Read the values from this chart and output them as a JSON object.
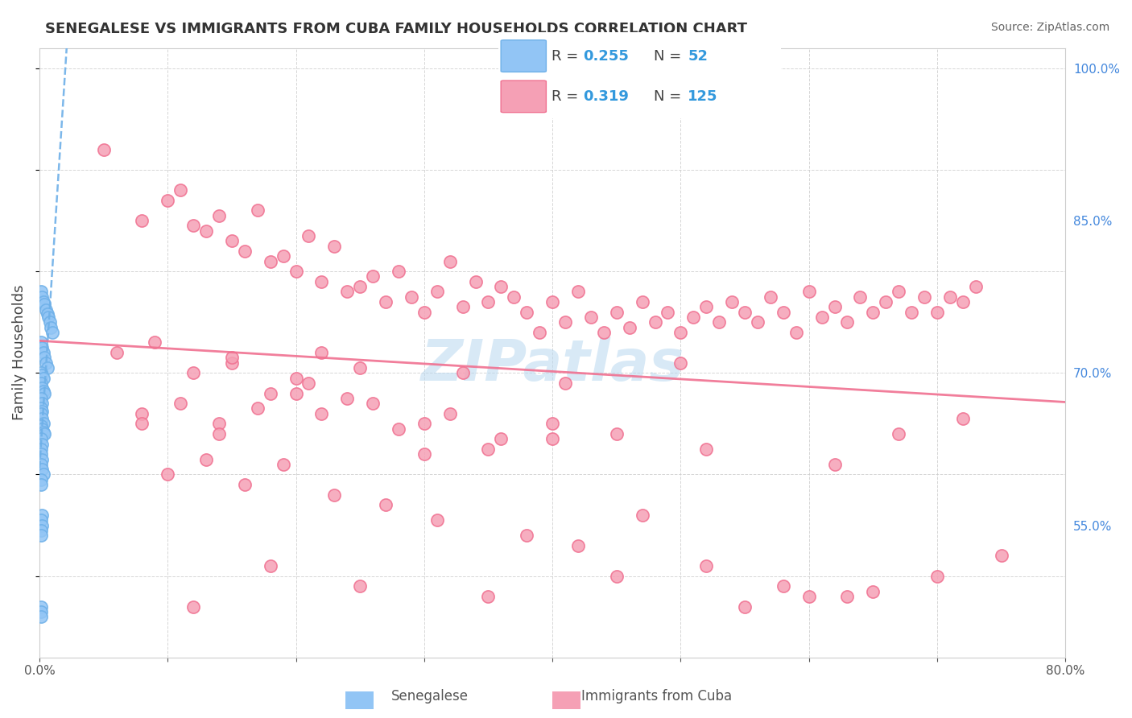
{
  "title": "SENEGALESE VS IMMIGRANTS FROM CUBA FAMILY HOUSEHOLDS CORRELATION CHART",
  "source": "Source: ZipAtlas.com",
  "xlabel_bottom": "",
  "ylabel": "Family Households",
  "xlim": [
    0.0,
    0.8
  ],
  "ylim": [
    0.42,
    1.02
  ],
  "xticks": [
    0.0,
    0.1,
    0.2,
    0.3,
    0.4,
    0.5,
    0.6,
    0.7,
    0.8
  ],
  "xticklabels": [
    "0.0%",
    "",
    "",
    "",
    "",
    "",
    "",
    "",
    "80.0%"
  ],
  "ytick_positions": [
    0.55,
    0.7,
    0.85,
    1.0
  ],
  "ytick_labels": [
    "55.0%",
    "70.0%",
    "85.0%",
    "100.0%"
  ],
  "legend_labels": [
    "Senegalese",
    "Immigrants from Cuba"
  ],
  "legend_r": [
    0.255,
    0.319
  ],
  "legend_n": [
    52,
    125
  ],
  "blue_color": "#92C5F5",
  "pink_color": "#F5A0B5",
  "blue_line_color": "#6EB0E8",
  "pink_line_color": "#F07090",
  "watermark": "ZIPatlas",
  "senegalese_x": [
    0.001,
    0.002,
    0.003,
    0.004,
    0.005,
    0.006,
    0.007,
    0.008,
    0.009,
    0.01,
    0.001,
    0.002,
    0.003,
    0.004,
    0.005,
    0.006,
    0.001,
    0.002,
    0.003,
    0.001,
    0.002,
    0.003,
    0.004,
    0.001,
    0.002,
    0.001,
    0.002,
    0.001,
    0.002,
    0.003,
    0.001,
    0.002,
    0.003,
    0.004,
    0.001,
    0.002,
    0.001,
    0.001,
    0.002,
    0.001,
    0.002,
    0.003,
    0.001,
    0.001,
    0.002,
    0.001,
    0.002,
    0.001,
    0.001,
    0.001,
    0.001,
    0.001
  ],
  "senegalese_y": [
    0.78,
    0.775,
    0.77,
    0.768,
    0.762,
    0.758,
    0.755,
    0.75,
    0.745,
    0.74,
    0.73,
    0.725,
    0.72,
    0.715,
    0.71,
    0.705,
    0.7,
    0.698,
    0.695,
    0.69,
    0.685,
    0.682,
    0.68,
    0.675,
    0.67,
    0.665,
    0.662,
    0.66,
    0.655,
    0.65,
    0.648,
    0.645,
    0.642,
    0.64,
    0.635,
    0.63,
    0.625,
    0.62,
    0.615,
    0.61,
    0.605,
    0.6,
    0.595,
    0.59,
    0.56,
    0.555,
    0.55,
    0.545,
    0.54,
    0.47,
    0.465,
    0.46
  ],
  "cuba_x": [
    0.05,
    0.08,
    0.1,
    0.11,
    0.12,
    0.13,
    0.14,
    0.15,
    0.16,
    0.17,
    0.18,
    0.19,
    0.2,
    0.21,
    0.22,
    0.23,
    0.24,
    0.25,
    0.26,
    0.27,
    0.28,
    0.29,
    0.3,
    0.31,
    0.32,
    0.33,
    0.34,
    0.35,
    0.36,
    0.37,
    0.38,
    0.39,
    0.4,
    0.41,
    0.42,
    0.43,
    0.44,
    0.45,
    0.46,
    0.47,
    0.48,
    0.49,
    0.5,
    0.51,
    0.52,
    0.53,
    0.54,
    0.55,
    0.56,
    0.57,
    0.58,
    0.59,
    0.6,
    0.61,
    0.62,
    0.63,
    0.64,
    0.65,
    0.66,
    0.67,
    0.68,
    0.69,
    0.7,
    0.71,
    0.72,
    0.73,
    0.12,
    0.15,
    0.18,
    0.2,
    0.22,
    0.25,
    0.08,
    0.11,
    0.14,
    0.17,
    0.21,
    0.24,
    0.28,
    0.32,
    0.36,
    0.4,
    0.45,
    0.3,
    0.35,
    0.1,
    0.13,
    0.16,
    0.19,
    0.23,
    0.27,
    0.31,
    0.38,
    0.42,
    0.47,
    0.52,
    0.58,
    0.63,
    0.67,
    0.72,
    0.06,
    0.09,
    0.15,
    0.2,
    0.26,
    0.33,
    0.41,
    0.5,
    0.6,
    0.7,
    0.12,
    0.18,
    0.25,
    0.35,
    0.45,
    0.55,
    0.65,
    0.75,
    0.08,
    0.14,
    0.22,
    0.3,
    0.4,
    0.52,
    0.62
  ],
  "cuba_y": [
    0.92,
    0.85,
    0.87,
    0.88,
    0.845,
    0.84,
    0.855,
    0.83,
    0.82,
    0.86,
    0.81,
    0.815,
    0.8,
    0.835,
    0.79,
    0.825,
    0.78,
    0.785,
    0.795,
    0.77,
    0.8,
    0.775,
    0.76,
    0.78,
    0.81,
    0.765,
    0.79,
    0.77,
    0.785,
    0.775,
    0.76,
    0.74,
    0.77,
    0.75,
    0.78,
    0.755,
    0.74,
    0.76,
    0.745,
    0.77,
    0.75,
    0.76,
    0.74,
    0.755,
    0.765,
    0.75,
    0.77,
    0.76,
    0.75,
    0.775,
    0.76,
    0.74,
    0.78,
    0.755,
    0.765,
    0.75,
    0.775,
    0.76,
    0.77,
    0.78,
    0.76,
    0.775,
    0.76,
    0.775,
    0.77,
    0.785,
    0.7,
    0.71,
    0.68,
    0.695,
    0.72,
    0.705,
    0.66,
    0.67,
    0.65,
    0.665,
    0.69,
    0.675,
    0.645,
    0.66,
    0.635,
    0.65,
    0.64,
    0.62,
    0.625,
    0.6,
    0.615,
    0.59,
    0.61,
    0.58,
    0.57,
    0.555,
    0.54,
    0.53,
    0.56,
    0.51,
    0.49,
    0.48,
    0.64,
    0.655,
    0.72,
    0.73,
    0.715,
    0.68,
    0.67,
    0.7,
    0.69,
    0.71,
    0.48,
    0.5,
    0.47,
    0.51,
    0.49,
    0.48,
    0.5,
    0.47,
    0.485,
    0.52,
    0.65,
    0.64,
    0.66,
    0.65,
    0.635,
    0.625,
    0.61
  ]
}
